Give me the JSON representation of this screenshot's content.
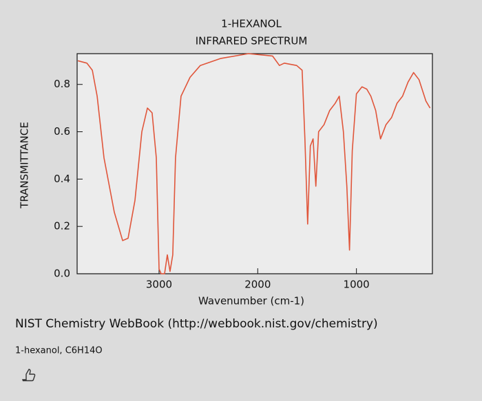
{
  "chart_data": {
    "type": "line",
    "title": "1-HEXANOL",
    "subtitle": "INFRARED SPECTRUM",
    "x_label": "Wavenumber (cm-1)",
    "y_label": "TRANSMITTANCE",
    "color": "#e0553a",
    "x": [
      3822,
      3731,
      3676,
      3627,
      3558,
      3453,
      3369,
      3314,
      3244,
      3174,
      3118,
      3070,
      3028,
      3000,
      2979,
      2944,
      2916,
      2889,
      2861,
      2833,
      2777,
      2686,
      2582,
      2373,
      2094,
      1850,
      1780,
      1731,
      1606,
      1550,
      1522,
      1494,
      1467,
      1439,
      1411,
      1383,
      1328,
      1271,
      1216,
      1174,
      1132,
      1097,
      1070,
      1042,
      1000,
      944,
      895,
      854,
      805,
      756,
      700,
      644,
      589,
      533,
      477,
      421,
      366,
      296,
      254
    ],
    "values": [
      0.9,
      0.89,
      0.86,
      0.75,
      0.49,
      0.26,
      0.14,
      0.15,
      0.31,
      0.6,
      0.7,
      0.68,
      0.49,
      0.02,
      0,
      0,
      0.08,
      0.01,
      0.08,
      0.49,
      0.75,
      0.83,
      0.88,
      0.91,
      0.93,
      0.92,
      0.88,
      0.89,
      0.88,
      0.86,
      0.57,
      0.21,
      0.54,
      0.57,
      0.37,
      0.6,
      0.63,
      0.69,
      0.72,
      0.75,
      0.6,
      0.37,
      0.1,
      0.52,
      0.76,
      0.79,
      0.78,
      0.75,
      0.69,
      0.57,
      0.63,
      0.66,
      0.72,
      0.75,
      0.81,
      0.85,
      0.82,
      0.73,
      0.7
    ],
    "xlim": [
      3830,
      230
    ],
    "xticks": [
      3000,
      2000,
      1000
    ],
    "ylim": [
      0,
      0.93
    ],
    "yticks": [
      {
        "value": 0,
        "label": "0.0"
      },
      0.2,
      0.4,
      0.6,
      0.8
    ]
  },
  "source": "NIST Chemistry WebBook (http://webbook.nist.gov/chemistry)",
  "caption": "1-hexanol, C6H14O"
}
